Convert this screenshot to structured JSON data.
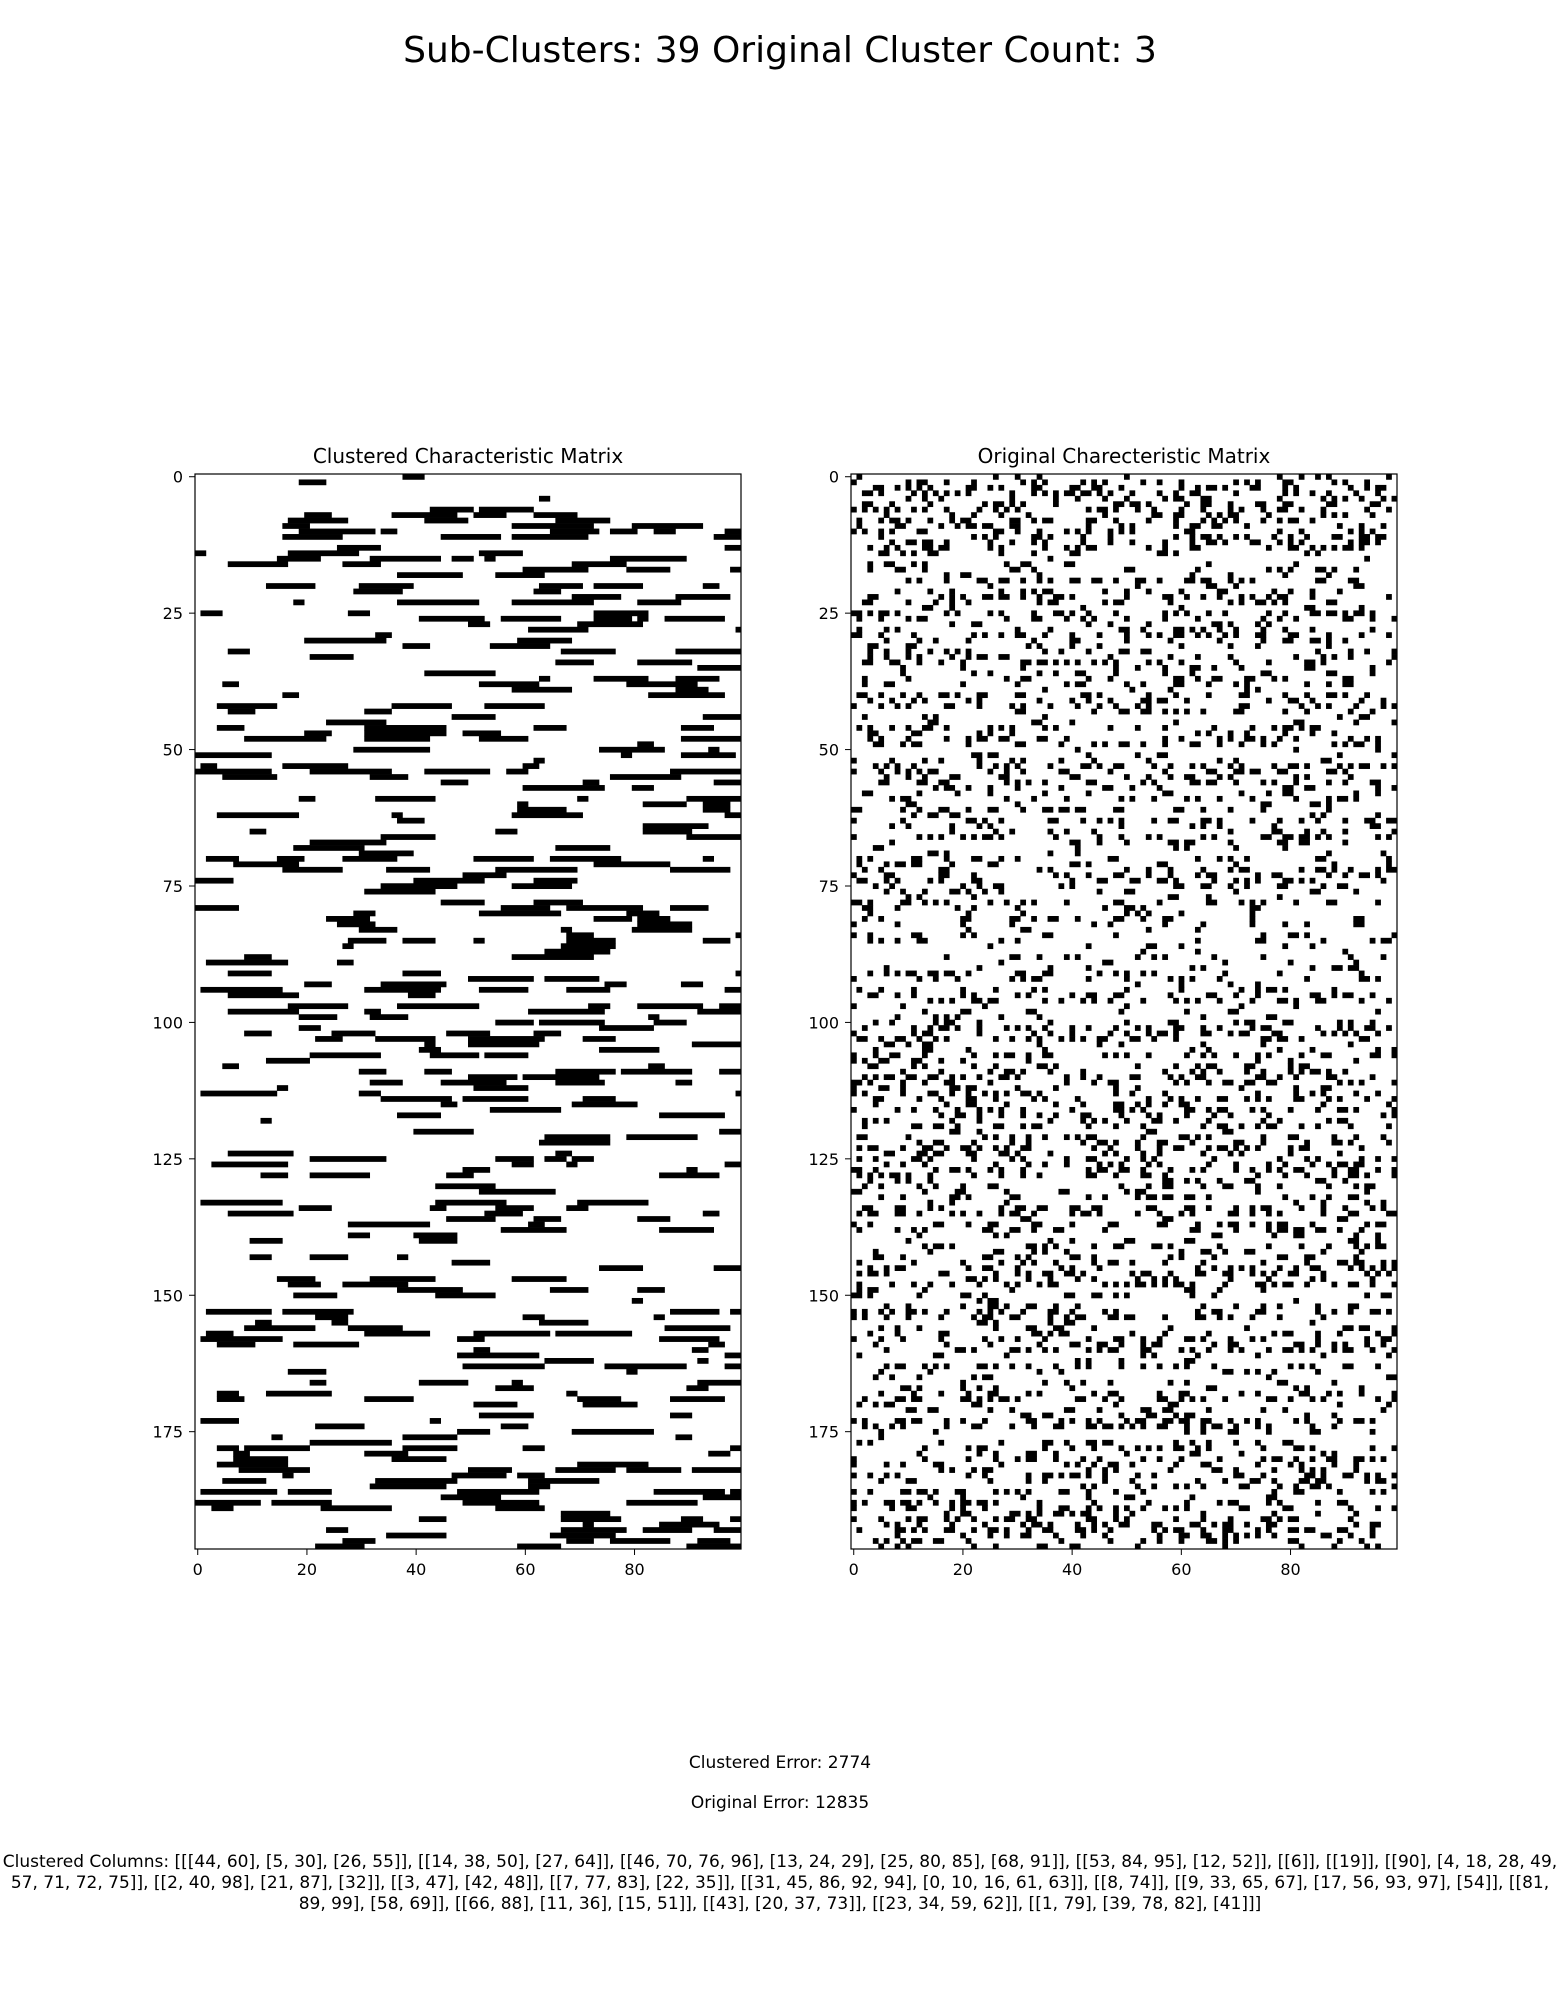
{
  "suptitle": "Sub-Clusters: 39  Original Cluster Count: 3",
  "clustered_error": "Clustered Error: 2774",
  "original_error": "Original Error: 12835",
  "clustered_columns": "Clustered Columns: [[[44, 60], [5, 30], [26, 55]], [[14, 38, 50], [27, 64]], [[46, 70, 76, 96], [13, 24, 29], [25, 80, 85], [68, 91]], [[53, 84, 95], [12, 52]], [[6]], [[19]], [[90], [4, 18, 28, 49, 57, 71, 72, 75]], [[2, 40, 98], [21, 87], [32]], [[3, 47], [42, 48]], [[7, 77, 83], [22, 35]], [[31, 45, 86, 92, 94], [0, 10, 16, 61, 63]], [[8, 74]], [[9, 33, 65, 67], [17, 56, 93, 97], [54]], [[81, 89, 99], [58, 69]], [[66, 88], [11, 36], [15, 51]], [[43], [20, 37, 73]], [[23, 34, 59, 62]], [[1, 79], [39, 78, 82], [41]]]",
  "chart_data": [
    {
      "type": "heatmap",
      "title": "Clustered Characteristic Matrix",
      "rows": 197,
      "cols": 100,
      "xlim": [
        -0.5,
        99.5
      ],
      "ylim": [
        196.5,
        -0.5
      ],
      "x_ticks": [
        0,
        20,
        40,
        60,
        80
      ],
      "y_ticks": [
        0,
        25,
        50,
        75,
        100,
        125,
        150,
        175
      ],
      "colormap": "binary",
      "colors": {
        "one": "#000000",
        "zero": "#ffffff"
      },
      "seed": 2774,
      "density": 0.19,
      "pattern": "clustered row runs"
    },
    {
      "type": "heatmap",
      "title": "Original Charecteristic Matrix",
      "rows": 197,
      "cols": 100,
      "xlim": [
        -0.5,
        99.5
      ],
      "ylim": [
        196.5,
        -0.5
      ],
      "x_ticks": [
        0,
        20,
        40,
        60,
        80
      ],
      "y_ticks": [
        0,
        25,
        50,
        75,
        100,
        125,
        150,
        175
      ],
      "colormap": "binary",
      "colors": {
        "one": "#000000",
        "zero": "#ffffff"
      },
      "seed": 12835,
      "density": 0.19,
      "pattern": "scattered cells"
    }
  ]
}
